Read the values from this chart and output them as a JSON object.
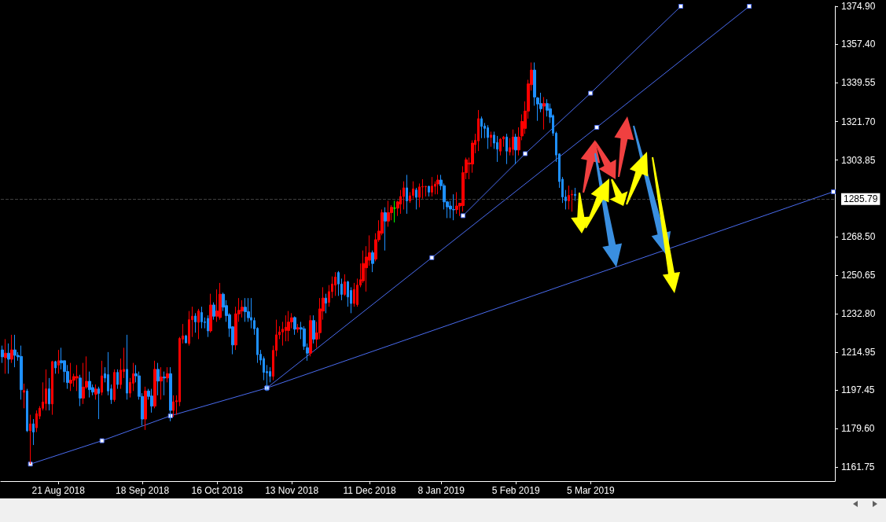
{
  "chart_data": {
    "type": "candlestick",
    "categories": [
      null,
      null,
      null,
      null,
      null,
      null,
      null,
      null,
      null,
      null,
      null,
      null,
      null,
      null,
      null,
      null,
      null,
      null,
      "21 Aug 2018",
      null,
      null,
      null,
      null,
      null,
      null,
      null,
      null,
      null,
      null,
      null,
      null,
      null,
      null,
      null,
      null,
      null,
      null,
      null,
      null,
      null,
      null,
      null,
      null,
      null,
      null,
      "18 Sep 2018",
      null,
      null,
      null,
      null,
      null,
      null,
      null,
      null,
      null,
      null,
      null,
      null,
      null,
      null,
      null,
      null,
      null,
      null,
      null,
      null,
      null,
      null,
      null,
      "16 Oct 2018",
      null,
      null,
      null,
      null,
      null,
      null,
      null,
      null,
      null,
      null,
      null,
      null,
      null,
      null,
      null,
      null,
      null,
      null,
      null,
      null,
      null,
      null,
      null,
      "13 Nov 2018",
      null,
      null,
      null,
      null,
      null,
      null,
      null,
      null,
      null,
      null,
      null,
      null,
      null,
      null,
      null,
      null,
      null,
      null,
      null,
      null,
      null,
      null,
      null,
      null,
      "11 Dec 2018",
      null,
      null,
      null,
      null,
      null,
      null,
      null,
      null,
      null,
      null,
      null,
      null,
      null,
      null,
      null,
      null,
      null,
      null,
      null,
      null,
      null,
      null,
      "8 Jan 2019",
      null,
      null,
      null,
      null,
      null,
      null,
      null,
      null,
      null,
      null,
      null,
      null,
      null,
      null,
      null,
      null,
      null,
      null,
      null,
      null,
      null,
      null,
      null,
      "5 Feb 2019",
      null,
      null,
      null,
      null,
      null,
      null,
      null,
      null,
      null,
      null,
      null,
      null,
      null,
      null,
      null,
      null,
      null,
      null,
      null,
      null,
      null,
      null,
      null,
      "5 Mar 2019",
      null,
      null,
      null,
      null,
      null,
      null,
      null,
      null,
      null,
      null,
      null,
      null,
      null,
      null,
      null,
      null,
      null,
      null,
      null,
      null,
      null,
      null,
      null,
      null,
      null,
      null,
      null,
      null,
      null,
      null,
      null,
      null,
      null,
      null,
      null,
      null,
      null,
      null,
      null,
      null,
      null,
      null,
      null,
      null,
      null,
      null,
      null,
      null,
      null,
      null,
      null,
      null,
      null,
      null,
      null,
      null,
      null,
      null,
      null,
      null,
      null,
      null,
      null,
      null,
      null,
      null,
      null,
      null,
      null,
      null,
      null,
      null,
      null,
      null,
      null,
      null,
      null,
      null
    ],
    "ylim": [
      1155.3,
      1375
    ],
    "yticks": [
      1161.75,
      {
        "value": 1179.6,
        "label": "1179.60"
      },
      1197.45,
      1214.95,
      {
        "value": 1232.8,
        "label": "1232.80"
      },
      1250.65,
      {
        "value": 1268.5,
        "label": "1268.50"
      },
      1303.85,
      {
        "value": 1321.7,
        "label": "1321.70"
      },
      1339.55,
      {
        "value": 1357.4,
        "label": "1357.40"
      },
      {
        "value": 1374.9,
        "label": "1374.90"
      }
    ],
    "grid": false,
    "ref_lines": [
      {
        "axis": "y",
        "value": 1285.79,
        "label": "1285.79",
        "color": "#404040"
      }
    ],
    "colors": [
      "#1e90ff",
      "#ff0000",
      "#1e90ff",
      "#ff0000",
      "#1e90ff",
      "#1e90ff",
      "#1e90ff",
      "#ff0000",
      "#1e90ff",
      "#ff0000",
      "#1e90ff",
      "#ff0000",
      "#ff0000",
      "#ff0000",
      "#ff0000",
      "#1e90ff",
      "#ff0000",
      "#1e90ff",
      "#ff0000",
      "#1e90ff",
      "#1e90ff",
      "#1e90ff",
      "#ff0000",
      "#ff0000",
      "#ff0000",
      "#1e90ff",
      "#ff0000",
      "#ff0000",
      "#1e90ff",
      "#1e90ff",
      "#ff0000",
      "#1e90ff",
      "#ff0000",
      "#1e90ff",
      "#1e90ff",
      "#1e90ff",
      "#ff0000",
      "#1e90ff",
      "#ff0000",
      "#ff0000",
      "#1e90ff",
      "#ff0000",
      "#ff0000",
      "#1e90ff",
      "#1e90ff",
      "#1e90ff",
      "#ff0000",
      "#1e90ff",
      "#1e90ff",
      "#ff0000",
      "#1e90ff",
      "#ff0000",
      "#1e90ff",
      "#ff0000",
      "#1e90ff",
      "#ff0000",
      "#ff0000",
      "#ff0000",
      "#ff0000",
      "#1e90ff",
      "#ff0000",
      "#ff0000",
      "#1e90ff",
      "#ff0000",
      "#1e90ff",
      "#1e90ff",
      "#1e90ff",
      "#ff0000",
      "#1e90ff",
      "#ff0000",
      "#ff0000",
      "#1e90ff",
      "#1e90ff",
      "#1e90ff",
      "#1e90ff",
      "#ff0000",
      "#ff0000",
      "#ff0000",
      "#1e90ff",
      "#1e90ff",
      "#1e90ff",
      "#1e90ff",
      "#1e90ff",
      "#1e90ff",
      "#1e90ff",
      "#1e90ff",
      "#1e90ff",
      "#ff0000",
      "#ff0000",
      "#ff0000",
      "#ff0000",
      "#ff0000",
      "#ff0000",
      "#ff0000",
      "#1e90ff",
      "#ff0000",
      "#1e90ff",
      "#1e90ff",
      "#1e90ff",
      "#ff0000",
      "#1e90ff",
      "#ff0000",
      "#ff0000",
      "#ff0000",
      "#1e90ff",
      "#ff0000",
      "#ff0000",
      "#ff0000",
      "#1e90ff",
      "#1e90ff",
      "#ff0000",
      "#1e90ff",
      "#1e90ff",
      "#ff0000",
      "#ff0000",
      "#ff0000",
      "#ff0000",
      "#ff0000",
      "#ff0000",
      "#1e90ff",
      "#ff0000",
      "#ff0000",
      "#ff0000",
      "#1e90ff",
      "#ff0000",
      "#ff0000",
      "#00ff00",
      "#ff0000",
      "#ff0000",
      "#ff0000",
      "#1e90ff",
      "#ff0000",
      "#ff0000",
      "#1e90ff",
      "#ff0000",
      "#ff0000",
      "#ff0000",
      "#1e90ff",
      "#ff0000",
      "#ff0000",
      "#ff0000",
      "#1e90ff",
      "#1e90ff",
      "#1e90ff",
      "#1e90ff",
      "#1e90ff",
      "#ff0000",
      "#ff0000",
      "#ff0000",
      "#ff0000",
      "#ff0000",
      "#ff0000",
      "#ff0000",
      "#ff0000",
      "#1e90ff",
      "#1e90ff",
      "#1e90ff",
      "#ff0000",
      "#1e90ff",
      "#1e90ff",
      "#ff0000",
      "#ff0000",
      "#1e90ff",
      "#ff0000",
      "#ff0000",
      "#1e90ff",
      "#ff0000",
      "#ff0000",
      "#ff0000",
      "#ff0000",
      "#ff0000",
      "#1e90ff",
      "#1e90ff",
      "#1e90ff",
      "#ff0000",
      "#1e90ff",
      "#1e90ff",
      "#1e90ff",
      "#1e90ff",
      "#1e90ff",
      "#1e90ff",
      "#1e90ff",
      "#ff0000",
      "#ff0000",
      "#1e90ff",
      null,
      null,
      null,
      null,
      null,
      null,
      null,
      null,
      null,
      null,
      null,
      null,
      null,
      null,
      null,
      null,
      null,
      null,
      null,
      null,
      null,
      null,
      null,
      null,
      null,
      null,
      null,
      null,
      null,
      null,
      null,
      null,
      null,
      null,
      null,
      null,
      null,
      null,
      null,
      null,
      null,
      null,
      null,
      null,
      null,
      null,
      null,
      null,
      null,
      null,
      null,
      null,
      null,
      null,
      null,
      null,
      null,
      null,
      null,
      null,
      null,
      null,
      null,
      null,
      null,
      null,
      null,
      null,
      null,
      null,
      null,
      null,
      null,
      null,
      null,
      null,
      null,
      null,
      null,
      null,
      null,
      null,
      null
    ],
    "ohlc": [
      [
        1216,
        1218,
        1210,
        1212.8
      ],
      [
        1212.4,
        1221,
        1205,
        1214.5
      ],
      [
        1214.5,
        1219,
        1205,
        1211.7
      ],
      [
        1211.7,
        1223,
        1210,
        1216
      ],
      [
        1216,
        1223,
        1208,
        1213.5
      ],
      [
        1213.5,
        1215,
        1211,
        1212.8
      ],
      [
        1213,
        1218,
        1193,
        1197.6
      ],
      [
        1196.4,
        1200.4,
        1189,
        1197.2
      ],
      [
        1197,
        1198,
        1178,
        1178.6
      ],
      [
        1178.6,
        1186,
        1163.2,
        1181.8
      ],
      [
        1181.8,
        1184,
        1172,
        1178
      ],
      [
        1180,
        1188,
        1178,
        1186.5
      ],
      [
        1185.4,
        1190,
        1184,
        1189
      ],
      [
        1189,
        1201,
        1188,
        1191.9
      ],
      [
        1191.2,
        1207,
        1188,
        1198
      ],
      [
        1198,
        1203,
        1188,
        1191
      ],
      [
        1191,
        1211,
        1186,
        1210.6
      ],
      [
        1210.6,
        1211,
        1205,
        1207.7
      ],
      [
        1209,
        1216,
        1205,
        1211
      ],
      [
        1211,
        1217,
        1207,
        1210
      ],
      [
        1211,
        1211,
        1201,
        1206
      ],
      [
        1206,
        1209,
        1198,
        1200.9
      ],
      [
        1200.6,
        1210,
        1197,
        1202
      ],
      [
        1202,
        1205,
        1199,
        1203.7
      ],
      [
        1203,
        1209,
        1197,
        1203.7
      ],
      [
        1203,
        1204.5,
        1190,
        1193.7
      ],
      [
        1193.7,
        1210,
        1191,
        1198.8
      ],
      [
        1198.8,
        1213,
        1198,
        1201.5
      ],
      [
        1201.5,
        1206,
        1194,
        1197.6
      ],
      [
        1198.6,
        1200,
        1195,
        1196.5
      ],
      [
        1195.5,
        1200,
        1193,
        1197.9
      ],
      [
        1198,
        1199,
        1184,
        1195.9
      ],
      [
        1196.4,
        1211,
        1195,
        1204
      ],
      [
        1205,
        1208,
        1201,
        1203
      ],
      [
        1204.6,
        1215,
        1195,
        1197
      ],
      [
        1198,
        1200,
        1191,
        1193
      ],
      [
        1193,
        1207,
        1192,
        1205.6
      ],
      [
        1205.6,
        1207,
        1198,
        1200
      ],
      [
        1200,
        1212,
        1198,
        1206.7
      ],
      [
        1206,
        1217,
        1203,
        1207
      ],
      [
        1207,
        1223,
        1193,
        1196
      ],
      [
        1196,
        1203,
        1194,
        1201
      ],
      [
        1200.6,
        1210,
        1197,
        1205
      ],
      [
        1205,
        1209,
        1201,
        1204
      ],
      [
        1204,
        1206,
        1193,
        1194.5
      ],
      [
        1194.5,
        1196,
        1181,
        1184
      ],
      [
        1184,
        1199,
        1179,
        1197
      ],
      [
        1197,
        1198,
        1193,
        1194.5
      ],
      [
        1194.7,
        1198,
        1187,
        1190
      ],
      [
        1190,
        1211,
        1189,
        1207
      ],
      [
        1207,
        1210,
        1195,
        1201.6
      ],
      [
        1201.6,
        1208,
        1193,
        1203.5
      ],
      [
        1203.5,
        1206,
        1195,
        1203
      ],
      [
        1203,
        1208,
        1201,
        1205
      ],
      [
        1205,
        1208,
        1183,
        1188
      ],
      [
        1188,
        1195,
        1185,
        1192
      ],
      [
        1192,
        1195,
        1186,
        1192.5
      ],
      [
        1192,
        1222,
        1190,
        1221.3
      ],
      [
        1221,
        1228,
        1219,
        1222.5
      ],
      [
        1222.5,
        1223,
        1219,
        1219.3
      ],
      [
        1219,
        1234,
        1218,
        1230
      ],
      [
        1230,
        1236,
        1222,
        1231.6
      ],
      [
        1231.7,
        1233,
        1224,
        1229
      ],
      [
        1228.8,
        1235,
        1221,
        1234
      ],
      [
        1233.3,
        1236,
        1226,
        1229
      ],
      [
        1229,
        1231,
        1226,
        1228.7
      ],
      [
        1230.6,
        1232,
        1222,
        1224.8
      ],
      [
        1224.8,
        1242,
        1224,
        1236.8
      ],
      [
        1236.8,
        1238,
        1230,
        1231.6
      ],
      [
        1231.6,
        1244,
        1229,
        1234
      ],
      [
        1231,
        1247,
        1230,
        1241.8
      ],
      [
        1241.8,
        1242.5,
        1234,
        1235.8
      ],
      [
        1236.5,
        1239,
        1229,
        1231.9
      ],
      [
        1232.3,
        1233,
        1222,
        1226
      ],
      [
        1226.7,
        1227,
        1214,
        1218.3
      ],
      [
        1218.3,
        1236,
        1216,
        1232.7
      ],
      [
        1232.7,
        1240,
        1229,
        1234.3
      ],
      [
        1234,
        1239,
        1231,
        1235.8
      ],
      [
        1235.8,
        1240,
        1229,
        1233.7
      ],
      [
        1233.7,
        1240,
        1229,
        1230.9
      ],
      [
        1231,
        1240,
        1226,
        1229.8
      ],
      [
        1229.6,
        1231,
        1223,
        1225.8
      ],
      [
        1226,
        1226.5,
        1210,
        1213.8
      ],
      [
        1214,
        1216,
        1209,
        1211.3
      ],
      [
        1212,
        1213,
        1202,
        1205.6
      ],
      [
        1206,
        1209,
        1197,
        1205.4
      ],
      [
        1206,
        1208,
        1201,
        1203.8
      ],
      [
        1203.8,
        1218,
        1202,
        1215.8
      ],
      [
        1215.8,
        1230,
        1213,
        1223
      ],
      [
        1223,
        1227,
        1221,
        1224.3
      ],
      [
        1224.3,
        1229,
        1218,
        1225.6
      ],
      [
        1225,
        1232,
        1220,
        1226.5
      ],
      [
        1225,
        1234,
        1220,
        1228.9
      ],
      [
        1229,
        1233,
        1226,
        1230.9
      ],
      [
        1231,
        1231.5,
        1223,
        1225.6
      ],
      [
        1225.6,
        1228,
        1224,
        1226.3
      ],
      [
        1226.3,
        1229,
        1221,
        1225.6
      ],
      [
        1225.8,
        1227,
        1216,
        1217.7
      ],
      [
        1217,
        1219,
        1211,
        1214.5
      ],
      [
        1214.5,
        1232,
        1213,
        1229.6
      ],
      [
        1229.6,
        1232,
        1219,
        1221
      ],
      [
        1221,
        1229,
        1217,
        1223.9
      ],
      [
        1224,
        1240,
        1221,
        1235
      ],
      [
        1234,
        1245,
        1230,
        1240
      ],
      [
        1240,
        1242,
        1233,
        1237.6
      ],
      [
        1238,
        1246,
        1236,
        1243
      ],
      [
        1243,
        1250,
        1240,
        1246.5
      ],
      [
        1246,
        1252,
        1241,
        1249.7
      ],
      [
        1251.8,
        1252.5,
        1241,
        1246.5
      ],
      [
        1246.5,
        1249,
        1239,
        1241.7
      ],
      [
        1241.7,
        1251,
        1241,
        1247.5
      ],
      [
        1247.5,
        1248,
        1236,
        1240.5
      ],
      [
        1243.5,
        1245,
        1233,
        1237.5
      ],
      [
        1237.5,
        1247,
        1236,
        1244
      ],
      [
        1237,
        1249,
        1236,
        1246
      ],
      [
        1246,
        1256,
        1245,
        1248.5
      ],
      [
        1248,
        1262,
        1247,
        1256
      ],
      [
        1254,
        1264,
        1243,
        1259
      ],
      [
        1257.5,
        1269,
        1255,
        1261
      ],
      [
        1261,
        1262,
        1252,
        1256
      ],
      [
        1258,
        1270,
        1257,
        1267
      ],
      [
        1267,
        1276,
        1266,
        1271
      ],
      [
        1270,
        1281,
        1269,
        1279.5
      ],
      [
        1279.5,
        1282,
        1262,
        1275.6
      ],
      [
        1275.6,
        1285,
        1273,
        1279.5
      ],
      [
        1279.5,
        1283,
        1276,
        1282
      ],
      [
        1281.6,
        1285,
        1275,
        1281.6
      ],
      [
        1281.6,
        1285,
        1278,
        1284.5
      ],
      [
        1283.5,
        1290,
        1279,
        1287
      ],
      [
        1287,
        1294,
        1281,
        1291
      ],
      [
        1291,
        1297,
        1279,
        1285
      ],
      [
        1285,
        1289,
        1284,
        1287.3
      ],
      [
        1287.5,
        1294,
        1286,
        1290.5
      ],
      [
        1290,
        1291,
        1281,
        1286.6
      ],
      [
        1286.6,
        1293,
        1282,
        1291.4
      ],
      [
        1291.4,
        1295,
        1286,
        1291.6
      ],
      [
        1291.5,
        1291.8,
        1287,
        1291.7
      ],
      [
        1291.7,
        1292,
        1287,
        1289
      ],
      [
        1289,
        1296,
        1287,
        1291.8
      ],
      [
        1291.7,
        1294,
        1288,
        1292.7
      ],
      [
        1292.8,
        1297,
        1288,
        1294.6
      ],
      [
        1294.6,
        1297,
        1290,
        1292
      ],
      [
        1292,
        1293,
        1281,
        1284.5
      ],
      [
        1284.5,
        1285,
        1277,
        1282.2
      ],
      [
        1282.6,
        1285,
        1277,
        1281.2
      ],
      [
        1281,
        1288,
        1276,
        1280.8
      ],
      [
        1280.9,
        1289,
        1279,
        1282.6
      ],
      [
        1282.6,
        1284,
        1278,
        1283.9
      ],
      [
        1282.8,
        1301,
        1280,
        1298
      ],
      [
        1298,
        1305,
        1295,
        1304
      ],
      [
        1302,
        1305,
        1295,
        1302.5
      ],
      [
        1302,
        1313,
        1298,
        1311.7
      ],
      [
        1311,
        1316,
        1307,
        1313
      ],
      [
        1312.7,
        1327,
        1308,
        1323
      ],
      [
        1323,
        1324,
        1314,
        1319.4
      ],
      [
        1319.6,
        1321,
        1314,
        1318.5
      ],
      [
        1318.8,
        1320,
        1309,
        1314.3
      ],
      [
        1314.3,
        1317,
        1310,
        1315.4
      ],
      [
        1315.4,
        1317,
        1309,
        1311.7
      ],
      [
        1312,
        1315,
        1303,
        1308.9
      ],
      [
        1308,
        1314,
        1306,
        1313.5
      ],
      [
        1313.6,
        1315,
        1310,
        1314.5
      ],
      [
        1314.5,
        1316,
        1302,
        1308
      ],
      [
        1307.6,
        1314,
        1306,
        1309.6
      ],
      [
        1308.8,
        1318,
        1306,
        1314.5
      ],
      [
        1314.5,
        1316,
        1302,
        1308.5
      ],
      [
        1308.5,
        1319,
        1306,
        1314.5
      ],
      [
        1315,
        1325,
        1313,
        1321.7
      ],
      [
        1318.5,
        1331,
        1316,
        1326.5
      ],
      [
        1326.5,
        1341,
        1323,
        1339.1
      ],
      [
        1338.7,
        1349,
        1336,
        1345.5
      ],
      [
        1345.5,
        1349,
        1329,
        1333
      ],
      [
        1332.6,
        1333,
        1322,
        1329.8
      ],
      [
        1330,
        1335,
        1326,
        1327.6
      ],
      [
        1328.8,
        1333,
        1318,
        1330
      ],
      [
        1330,
        1332,
        1324,
        1326.9
      ],
      [
        1327.6,
        1330,
        1321,
        1323.7
      ],
      [
        1324.4,
        1325,
        1315,
        1316.3
      ],
      [
        1316.3,
        1317,
        1303,
        1306.2
      ],
      [
        1306.7,
        1307,
        1291,
        1293.9
      ],
      [
        1295,
        1296,
        1284,
        1286.8
      ],
      [
        1286.8,
        1290,
        1281,
        1285
      ],
      [
        1285,
        1292,
        1281,
        1287.5
      ],
      [
        1287.7,
        1290,
        1280,
        1288
      ],
      [
        1288,
        1291,
        1285,
        1287.5
      ],
      null,
      null,
      null,
      null,
      null,
      null,
      null,
      null,
      null,
      null,
      null,
      null,
      null,
      null,
      null,
      null,
      null,
      null,
      null,
      null,
      null,
      null,
      null,
      null,
      null,
      null,
      null,
      null,
      null,
      null,
      null,
      null,
      null,
      null,
      null,
      null,
      null,
      null,
      null,
      null,
      null,
      null,
      null,
      null,
      null,
      null,
      null,
      null,
      null,
      null,
      null,
      null,
      null,
      null,
      null,
      null,
      null,
      null,
      null,
      null,
      null,
      null,
      null,
      null,
      null,
      null,
      null,
      null,
      null,
      null,
      null,
      null,
      null,
      null,
      null,
      null,
      null,
      null,
      null,
      null,
      null,
      null,
      null
    ],
    "series": [
      {
        "type": "line",
        "color": "#4a6cf0",
        "marker": "square",
        "values": [
          null,
          null,
          null,
          null,
          null,
          null,
          null,
          null,
          null,
          1163.2,
          null,
          null,
          null,
          null,
          null,
          null,
          null,
          null,
          null,
          null,
          null,
          null,
          null,
          null,
          null,
          null,
          null,
          null,
          null,
          null,
          null,
          null,
          1174,
          null,
          null,
          null,
          null,
          null,
          null,
          null,
          null,
          null,
          null,
          null,
          null,
          null,
          null,
          null,
          null,
          null,
          null,
          null,
          null,
          null,
          1185.5,
          null,
          null,
          null,
          null,
          null,
          null,
          null,
          null,
          null,
          null,
          null,
          null,
          null,
          null,
          null,
          null,
          null,
          null,
          null,
          null,
          null,
          null,
          null,
          null,
          null,
          null,
          null,
          null,
          null,
          null,
          1198.4,
          null,
          null,
          null,
          null,
          null,
          null,
          null,
          null,
          null,
          null,
          null,
          null,
          null,
          null,
          null,
          null,
          null,
          null,
          null,
          null,
          null,
          null,
          null,
          null,
          null,
          null,
          null,
          null,
          null,
          null,
          null,
          null,
          null,
          null,
          null,
          null,
          null,
          null,
          null,
          null,
          null,
          null,
          null,
          null,
          null,
          null,
          null,
          null,
          null,
          null,
          null,
          null,
          null,
          null,
          null,
          null,
          null,
          null,
          null,
          null,
          null,
          null,
          null,
          null,
          null,
          null,
          null,
          null,
          null,
          null,
          null,
          null,
          null,
          null,
          null,
          null,
          null,
          null,
          null,
          null,
          null,
          null,
          null,
          null,
          null,
          null,
          null,
          null,
          null,
          null,
          null,
          null,
          null,
          null,
          null,
          null,
          null,
          null,
          null,
          null,
          null,
          null,
          null,
          null,
          null,
          null,
          null,
          null,
          null,
          null,
          null,
          null,
          null,
          null,
          null,
          null,
          null,
          null,
          null,
          null,
          null,
          null,
          null,
          null,
          null,
          null,
          null,
          null,
          null,
          null,
          null,
          null,
          null,
          null,
          null,
          null,
          null,
          null,
          null,
          null,
          null,
          null,
          null,
          null,
          null,
          null,
          null,
          null,
          null,
          null,
          null,
          null,
          null,
          null,
          null,
          null,
          null,
          null,
          null,
          null,
          null,
          null,
          null,
          null,
          null,
          null,
          null,
          null,
          null,
          null,
          null,
          null,
          null,
          null,
          null,
          null,
          null,
          null,
          null,
          null,
          null,
          1289.2
        ]
      },
      {
        "type": "line",
        "color": "#4a6cf0",
        "marker": "square",
        "values": [
          null,
          null,
          null,
          null,
          null,
          null,
          null,
          null,
          null,
          null,
          null,
          null,
          null,
          null,
          null,
          null,
          null,
          null,
          null,
          null,
          null,
          null,
          null,
          null,
          null,
          null,
          null,
          null,
          null,
          null,
          null,
          null,
          null,
          null,
          null,
          null,
          null,
          null,
          null,
          null,
          null,
          null,
          null,
          null,
          null,
          null,
          null,
          null,
          null,
          null,
          null,
          null,
          null,
          null,
          null,
          null,
          null,
          null,
          null,
          null,
          null,
          null,
          null,
          null,
          null,
          null,
          null,
          null,
          null,
          null,
          null,
          null,
          null,
          null,
          null,
          null,
          null,
          null,
          null,
          null,
          null,
          null,
          null,
          null,
          null,
          1198.4,
          null,
          null,
          null,
          null,
          null,
          null,
          null,
          null,
          null,
          null,
          null,
          null,
          null,
          null,
          null,
          null,
          null,
          null,
          null,
          null,
          null,
          null,
          null,
          null,
          null,
          null,
          null,
          null,
          null,
          null,
          null,
          null,
          null,
          null,
          null,
          null,
          null,
          null,
          null,
          null,
          null,
          null,
          null,
          null,
          null,
          null,
          null,
          null,
          null,
          null,
          null,
          null,
          1258.7,
          null,
          null,
          null,
          null,
          null,
          null,
          null,
          null,
          null,
          null,
          null,
          null,
          null,
          null,
          null,
          null,
          null,
          null,
          null,
          null,
          null,
          null,
          null,
          null,
          null,
          null,
          null,
          null,
          null,
          null,
          null,
          null,
          null,
          null,
          null,
          null,
          null,
          null,
          null,
          null,
          null,
          null,
          null,
          null,
          null,
          null,
          null,
          null,
          null,
          null,
          null,
          null,
          1319,
          null,
          null,
          null,
          null,
          null,
          null,
          null,
          null,
          null,
          null,
          null,
          null,
          null,
          null,
          null,
          null,
          null,
          null,
          null,
          null,
          null,
          null,
          null,
          null,
          null,
          null,
          null,
          null,
          null,
          null,
          null,
          null,
          null,
          null,
          null,
          null,
          null,
          null,
          null,
          null,
          null,
          null,
          null,
          null,
          null,
          null,
          null,
          null,
          1375,
          null,
          null,
          null,
          null,
          null,
          null,
          null,
          null,
          null,
          null,
          null,
          null,
          null,
          null,
          null,
          null,
          null,
          null,
          null,
          null,
          null,
          null,
          null,
          null,
          null,
          null,
          null
        ]
      },
      {
        "type": "line",
        "color": "#4a6cf0",
        "marker": "square",
        "values": [
          null,
          null,
          null,
          null,
          null,
          null,
          null,
          null,
          null,
          null,
          null,
          null,
          null,
          null,
          null,
          null,
          null,
          null,
          null,
          null,
          null,
          null,
          null,
          null,
          null,
          null,
          null,
          null,
          null,
          null,
          null,
          null,
          null,
          null,
          null,
          null,
          null,
          null,
          null,
          null,
          null,
          null,
          null,
          null,
          null,
          null,
          null,
          null,
          null,
          null,
          null,
          null,
          null,
          null,
          null,
          null,
          null,
          null,
          null,
          null,
          null,
          null,
          null,
          null,
          null,
          null,
          null,
          null,
          null,
          null,
          null,
          null,
          null,
          null,
          null,
          null,
          null,
          null,
          null,
          null,
          null,
          null,
          null,
          null,
          null,
          null,
          null,
          null,
          null,
          null,
          null,
          null,
          null,
          null,
          null,
          null,
          null,
          null,
          null,
          null,
          null,
          null,
          null,
          null,
          null,
          null,
          null,
          null,
          null,
          null,
          null,
          null,
          null,
          null,
          null,
          null,
          null,
          null,
          null,
          null,
          null,
          null,
          null,
          null,
          null,
          null,
          null,
          null,
          null,
          null,
          null,
          null,
          null,
          null,
          null,
          null,
          null,
          null,
          null,
          null,
          null,
          null,
          null,
          null,
          null,
          null,
          null,
          null,
          1278.1,
          null,
          null,
          null,
          null,
          null,
          null,
          null,
          null,
          null,
          null,
          null,
          null,
          null,
          null,
          null,
          null,
          null,
          null,
          null,
          1306.8,
          null,
          null,
          null,
          null,
          null,
          null,
          null,
          null,
          null,
          null,
          null,
          null,
          null,
          null,
          null,
          null,
          null,
          null,
          null,
          null,
          1334.8,
          null,
          null,
          null,
          null,
          null,
          null,
          null,
          null,
          null,
          null,
          null,
          null,
          null,
          null,
          null,
          null,
          null,
          null,
          null,
          null,
          null,
          null,
          null,
          null,
          null,
          null,
          null,
          null,
          1375,
          null,
          null,
          null,
          null,
          null,
          null,
          null,
          null,
          null,
          null,
          null,
          null,
          null,
          null,
          null,
          null,
          null,
          null,
          null,
          null,
          null,
          null,
          null,
          null,
          null,
          null,
          null,
          null,
          null,
          null,
          null,
          null,
          null,
          null,
          null,
          null,
          null,
          null,
          null,
          null,
          null,
          null,
          null,
          null,
          null,
          null,
          null,
          null,
          null
        ]
      }
    ]
  }
}
